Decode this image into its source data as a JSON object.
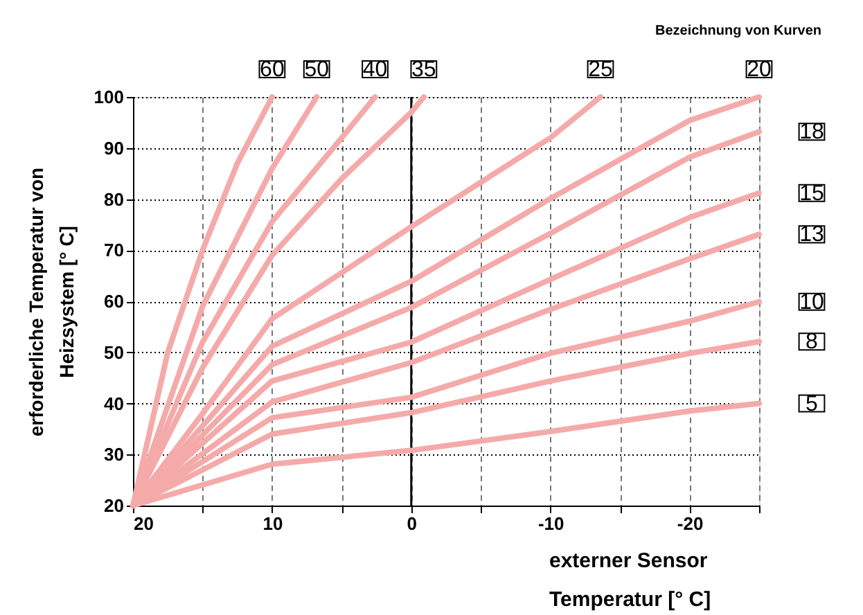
{
  "chart_data": {
    "type": "line",
    "xlabel": "externer Sensor\nTemperatur [° C]",
    "ylabel": "erforderliche Temperatur von\nHeizsystem [° C]",
    "annotations": [
      "Bezeichnung von Kurven"
    ],
    "xlim": [
      20,
      -25
    ],
    "ylim": [
      20,
      100
    ],
    "xticks": [
      20,
      {
        "value": 15,
        "label": null
      },
      10,
      {
        "value": 5,
        "label": null
      },
      0,
      {
        "value": -5,
        "label": null
      },
      -10,
      {
        "value": -15,
        "label": null
      },
      -20,
      {
        "value": -25,
        "label": null
      }
    ],
    "yticks": [
      20,
      30,
      40,
      50,
      60,
      70,
      80,
      90,
      100
    ],
    "grid": true,
    "legend": false,
    "marker": "none",
    "line_style": "solid",
    "ref_lines": [
      {
        "axis": "x",
        "value": 0,
        "color": "#000000"
      }
    ],
    "series": [
      {
        "name": "60",
        "color": "#f5aaaa",
        "x": [
          20,
          17.5,
          15,
          12.5,
          10
        ],
        "values": [
          20,
          50,
          70,
          87,
          100
        ]
      },
      {
        "name": "50",
        "color": "#f5aaaa",
        "x": [
          20,
          15,
          10,
          6.8
        ],
        "values": [
          20,
          59,
          86,
          100
        ]
      },
      {
        "name": "40",
        "color": "#f5aaaa",
        "x": [
          20,
          15,
          10,
          5,
          2.6
        ],
        "values": [
          20,
          52,
          75.6,
          92,
          100
        ]
      },
      {
        "name": "35",
        "color": "#f5aaaa",
        "x": [
          20,
          15,
          10,
          5,
          0,
          -0.9
        ],
        "values": [
          20,
          47,
          69,
          84,
          97,
          100
        ]
      },
      {
        "name": "25",
        "color": "#f5aaaa",
        "x": [
          20,
          15,
          10,
          0,
          -10,
          -13.6
        ],
        "values": [
          20,
          38,
          56.6,
          74.6,
          92,
          100
        ]
      },
      {
        "name": "20",
        "color": "#f5aaaa",
        "x": [
          20,
          10,
          0,
          -10,
          -20,
          -25
        ],
        "values": [
          20,
          51.2,
          63.9,
          80.1,
          95.4,
          100
        ]
      },
      {
        "name": "18",
        "color": "#f5aaaa",
        "x": [
          20,
          10,
          0,
          -10,
          -20,
          -25
        ],
        "values": [
          20,
          47.6,
          58.8,
          73.3,
          88.2,
          93.2
        ]
      },
      {
        "name": "15",
        "color": "#f5aaaa",
        "x": [
          20,
          10,
          0,
          -10,
          -20,
          -25
        ],
        "values": [
          20,
          44.4,
          52,
          64.3,
          76.4,
          81.2
        ]
      },
      {
        "name": "13",
        "color": "#f5aaaa",
        "x": [
          20,
          10,
          0,
          -10,
          -20,
          -25
        ],
        "values": [
          20,
          40.3,
          48,
          58.4,
          68.3,
          73.1
        ]
      },
      {
        "name": "10",
        "color": "#f5aaaa",
        "x": [
          20,
          10,
          0,
          -10,
          -20,
          -25
        ],
        "values": [
          20,
          37.2,
          41.2,
          49.8,
          56.1,
          59.9
        ]
      },
      {
        "name": "8",
        "color": "#f5aaaa",
        "x": [
          20,
          10,
          0,
          -10,
          -20,
          -25
        ],
        "values": [
          20,
          34,
          38.2,
          44.4,
          49.8,
          52.1
        ]
      },
      {
        "name": "5",
        "color": "#f5aaaa",
        "x": [
          20,
          10,
          0,
          -10,
          -20,
          -25
        ],
        "values": [
          20,
          28.1,
          30.8,
          34.5,
          38.5,
          40
        ]
      }
    ]
  }
}
